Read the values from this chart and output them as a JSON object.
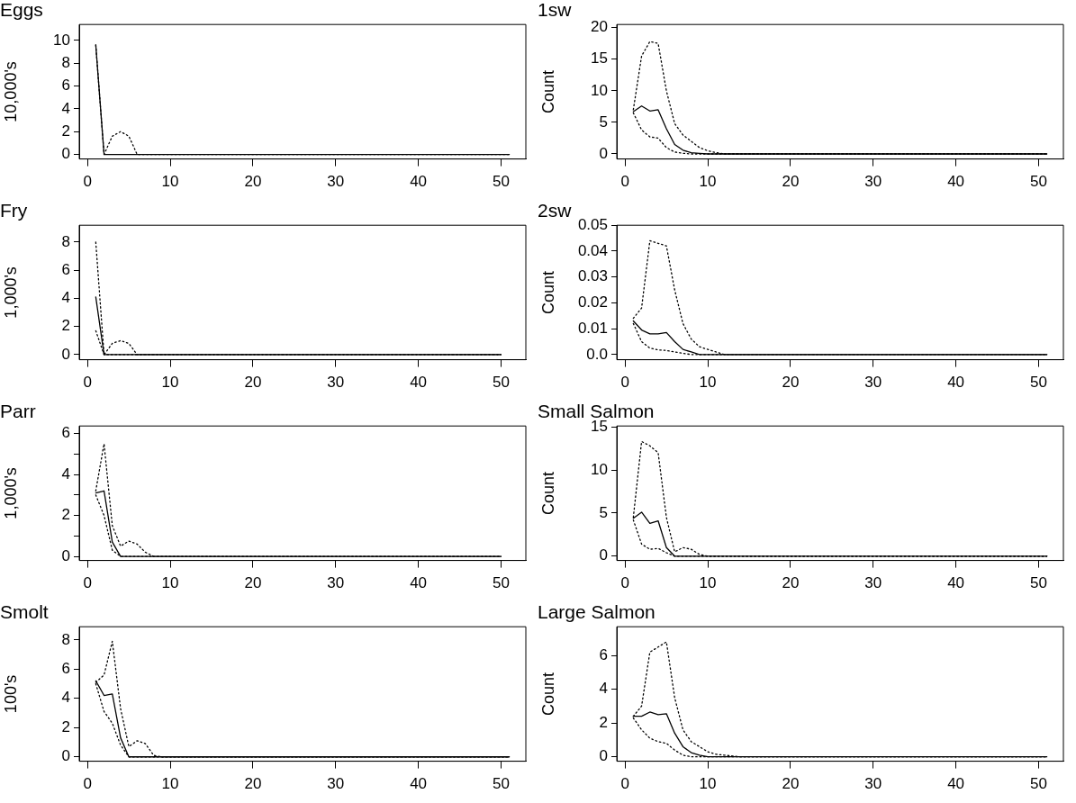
{
  "chart_data": [
    {
      "type": "line",
      "title": "Eggs",
      "ylabel": "10,000's",
      "xlim": [
        -1,
        53
      ],
      "xticks": [
        0,
        10,
        20,
        30,
        40,
        50
      ],
      "ylim": [
        -0.4,
        11.4
      ],
      "yticks": [
        0,
        2,
        4,
        6,
        8,
        10
      ],
      "series": [
        {
          "color": "#000000",
          "line_style": "solid",
          "x": [
            1,
            2,
            51
          ],
          "values": [
            9.6,
            0,
            0
          ]
        },
        {
          "color": "#000000",
          "line_style": "dotted",
          "x": [
            1,
            2,
            3,
            4,
            5,
            6,
            51
          ],
          "values": [
            9.6,
            0,
            1.6,
            2.0,
            1.6,
            0,
            0
          ]
        }
      ]
    },
    {
      "type": "line",
      "title": "1sw",
      "ylabel": "Count",
      "xlim": [
        -1,
        53
      ],
      "xticks": [
        0,
        10,
        20,
        30,
        40,
        50
      ],
      "ylim": [
        -0.8,
        20.5
      ],
      "yticks": [
        0,
        5,
        10,
        15,
        20
      ],
      "series": [
        {
          "color": "#000000",
          "line_style": "solid",
          "x": [
            1,
            2,
            3,
            4,
            5,
            6,
            7,
            8,
            9,
            10,
            51
          ],
          "values": [
            6.7,
            7.6,
            6.8,
            7.0,
            4.0,
            1.5,
            0.6,
            0.2,
            0.1,
            0,
            0
          ]
        },
        {
          "color": "#000000",
          "line_style": "dotted",
          "x": [
            1,
            2,
            3,
            4,
            5,
            6,
            7,
            8,
            51
          ],
          "values": [
            6.5,
            3.8,
            2.7,
            2.5,
            1.0,
            0.3,
            0.1,
            0,
            0
          ]
        },
        {
          "color": "#000000",
          "line_style": "dotted",
          "x": [
            1,
            2,
            3,
            4,
            5,
            6,
            7,
            8,
            9,
            10,
            11,
            12,
            51
          ],
          "values": [
            7,
            15.5,
            17.8,
            17.5,
            10,
            4.8,
            3.0,
            2.0,
            1.0,
            0.5,
            0.2,
            0,
            0
          ]
        }
      ]
    },
    {
      "type": "line",
      "title": "Fry",
      "ylabel": "1,000's",
      "xlim": [
        -1,
        53
      ],
      "xticks": [
        0,
        10,
        20,
        30,
        40,
        50
      ],
      "ylim": [
        -0.36,
        9.2
      ],
      "yticks": [
        0,
        2,
        4,
        6,
        8
      ],
      "series": [
        {
          "color": "#000000",
          "line_style": "solid",
          "x": [
            1,
            2,
            50
          ],
          "values": [
            4.1,
            0,
            0
          ]
        },
        {
          "color": "#000000",
          "line_style": "dotted",
          "x": [
            1,
            2,
            50
          ],
          "values": [
            1.7,
            0,
            0
          ]
        },
        {
          "color": "#000000",
          "line_style": "dotted",
          "x": [
            1,
            2,
            3,
            4,
            5,
            6,
            50
          ],
          "values": [
            8,
            0,
            0.8,
            1.0,
            0.8,
            0,
            0
          ]
        }
      ]
    },
    {
      "type": "line",
      "title": "2sw",
      "ylabel": "Count",
      "xlim": [
        -1,
        53
      ],
      "xticks": [
        0,
        10,
        20,
        30,
        40,
        50
      ],
      "ylim": [
        -0.002,
        0.05
      ],
      "yticks": [
        {
          "value": 0,
          "label": "0.0"
        },
        0.01,
        0.02,
        0.03,
        0.04,
        0.05
      ],
      "series": [
        {
          "color": "#000000",
          "line_style": "solid",
          "x": [
            1,
            2,
            3,
            4,
            5,
            6,
            7,
            8,
            9,
            10,
            51
          ],
          "values": [
            0.013,
            0.0095,
            0.008,
            0.008,
            0.0085,
            0.005,
            0.002,
            0.001,
            0,
            0,
            0
          ]
        },
        {
          "color": "#000000",
          "line_style": "dotted",
          "x": [
            1,
            2,
            3,
            4,
            5,
            6,
            7,
            8,
            51
          ],
          "values": [
            0.012,
            0.005,
            0.0025,
            0.0018,
            0.0016,
            0.001,
            0.0005,
            0,
            0
          ]
        },
        {
          "color": "#000000",
          "line_style": "dotted",
          "x": [
            1,
            2,
            3,
            4,
            5,
            6,
            7,
            8,
            9,
            10,
            11,
            12,
            51
          ],
          "values": [
            0.014,
            0.018,
            0.044,
            0.043,
            0.042,
            0.025,
            0.012,
            0.006,
            0.003,
            0.002,
            0.001,
            0,
            0
          ]
        }
      ]
    },
    {
      "type": "line",
      "title": "Parr",
      "ylabel": "1,000's",
      "xlim": [
        -1,
        53
      ],
      "xticks": [
        0,
        10,
        20,
        30,
        40,
        50
      ],
      "ylim": [
        -0.2,
        6.37
      ],
      "yticks": [
        0,
        {
          "value": 1,
          "label": null
        },
        2,
        {
          "value": 3,
          "label": null
        },
        4,
        {
          "value": 5,
          "label": null
        },
        6
      ],
      "series": [
        {
          "color": "#000000",
          "line_style": "solid",
          "x": [
            1,
            2,
            3,
            4,
            50
          ],
          "values": [
            3.1,
            3.2,
            0.7,
            0,
            0
          ]
        },
        {
          "color": "#000000",
          "line_style": "dotted",
          "x": [
            1,
            2,
            3,
            4,
            50
          ],
          "values": [
            3.0,
            2.0,
            0.3,
            0,
            0
          ]
        },
        {
          "color": "#000000",
          "line_style": "dotted",
          "x": [
            1,
            2,
            3,
            4,
            5,
            6,
            7,
            8,
            50
          ],
          "values": [
            3.2,
            5.5,
            1.5,
            0.5,
            0.75,
            0.6,
            0.2,
            0,
            0
          ]
        }
      ]
    },
    {
      "type": "line",
      "title": "Small Salmon",
      "ylabel": "Count",
      "xlim": [
        -1,
        53
      ],
      "xticks": [
        0,
        10,
        20,
        30,
        40,
        50
      ],
      "ylim": [
        -0.5,
        15.1
      ],
      "yticks": [
        0,
        5,
        10,
        15
      ],
      "series": [
        {
          "color": "#000000",
          "line_style": "solid",
          "x": [
            1,
            2,
            3,
            4,
            5,
            6,
            51
          ],
          "values": [
            4.4,
            5.1,
            3.8,
            4.1,
            1.0,
            0,
            0
          ]
        },
        {
          "color": "#000000",
          "line_style": "dotted",
          "x": [
            1,
            2,
            3,
            4,
            5,
            6,
            51
          ],
          "values": [
            4.2,
            1.4,
            0.8,
            0.9,
            0.4,
            0,
            0
          ]
        },
        {
          "color": "#000000",
          "line_style": "dotted",
          "x": [
            1,
            2,
            3,
            4,
            5,
            6,
            7,
            8,
            9,
            10,
            51
          ],
          "values": [
            4.5,
            13.3,
            12.8,
            12.0,
            4.5,
            0.5,
            1.0,
            0.8,
            0.2,
            0,
            0
          ]
        }
      ]
    },
    {
      "type": "line",
      "title": "Smolt",
      "ylabel": "100's",
      "xlim": [
        -1,
        53
      ],
      "xticks": [
        0,
        10,
        20,
        30,
        40,
        50
      ],
      "ylim": [
        -0.3,
        8.9
      ],
      "yticks": [
        0,
        2,
        4,
        6,
        8
      ],
      "series": [
        {
          "color": "#000000",
          "line_style": "solid",
          "x": [
            1,
            2,
            3,
            4,
            5,
            51
          ],
          "values": [
            5.2,
            4.2,
            4.3,
            1.3,
            0,
            0
          ]
        },
        {
          "color": "#000000",
          "line_style": "dotted",
          "x": [
            1,
            2,
            3,
            4,
            5,
            51
          ],
          "values": [
            5.0,
            3.1,
            2.3,
            0.8,
            0,
            0
          ]
        },
        {
          "color": "#000000",
          "line_style": "dotted",
          "x": [
            1,
            2,
            3,
            4,
            5,
            6,
            7,
            8,
            9,
            51
          ],
          "values": [
            5.1,
            5.6,
            7.9,
            3.3,
            0.7,
            1.1,
            0.9,
            0.1,
            0,
            0
          ]
        }
      ]
    },
    {
      "type": "line",
      "title": "Large Salmon",
      "ylabel": "Count",
      "xlim": [
        -1,
        53
      ],
      "xticks": [
        0,
        10,
        20,
        30,
        40,
        50
      ],
      "ylim": [
        -0.26,
        7.7
      ],
      "yticks": [
        0,
        2,
        4,
        6
      ],
      "series": [
        {
          "color": "#000000",
          "line_style": "solid",
          "x": [
            1,
            2,
            3,
            4,
            5,
            6,
            7,
            8,
            9,
            10,
            11,
            51
          ],
          "values": [
            2.4,
            2.4,
            2.65,
            2.5,
            2.55,
            1.4,
            0.6,
            0.25,
            0.1,
            0,
            0,
            0
          ]
        },
        {
          "color": "#000000",
          "line_style": "dotted",
          "x": [
            1,
            2,
            3,
            4,
            5,
            6,
            7,
            8,
            51
          ],
          "values": [
            2.3,
            1.6,
            1.1,
            0.9,
            0.8,
            0.4,
            0.1,
            0,
            0
          ]
        },
        {
          "color": "#000000",
          "line_style": "dotted",
          "x": [
            1,
            2,
            3,
            4,
            5,
            6,
            7,
            8,
            9,
            10,
            11,
            12,
            13,
            14,
            51
          ],
          "values": [
            2.4,
            3.0,
            6.2,
            6.5,
            6.8,
            3.5,
            1.6,
            0.9,
            0.6,
            0.3,
            0.15,
            0.1,
            0.05,
            0,
            0
          ]
        }
      ]
    }
  ]
}
